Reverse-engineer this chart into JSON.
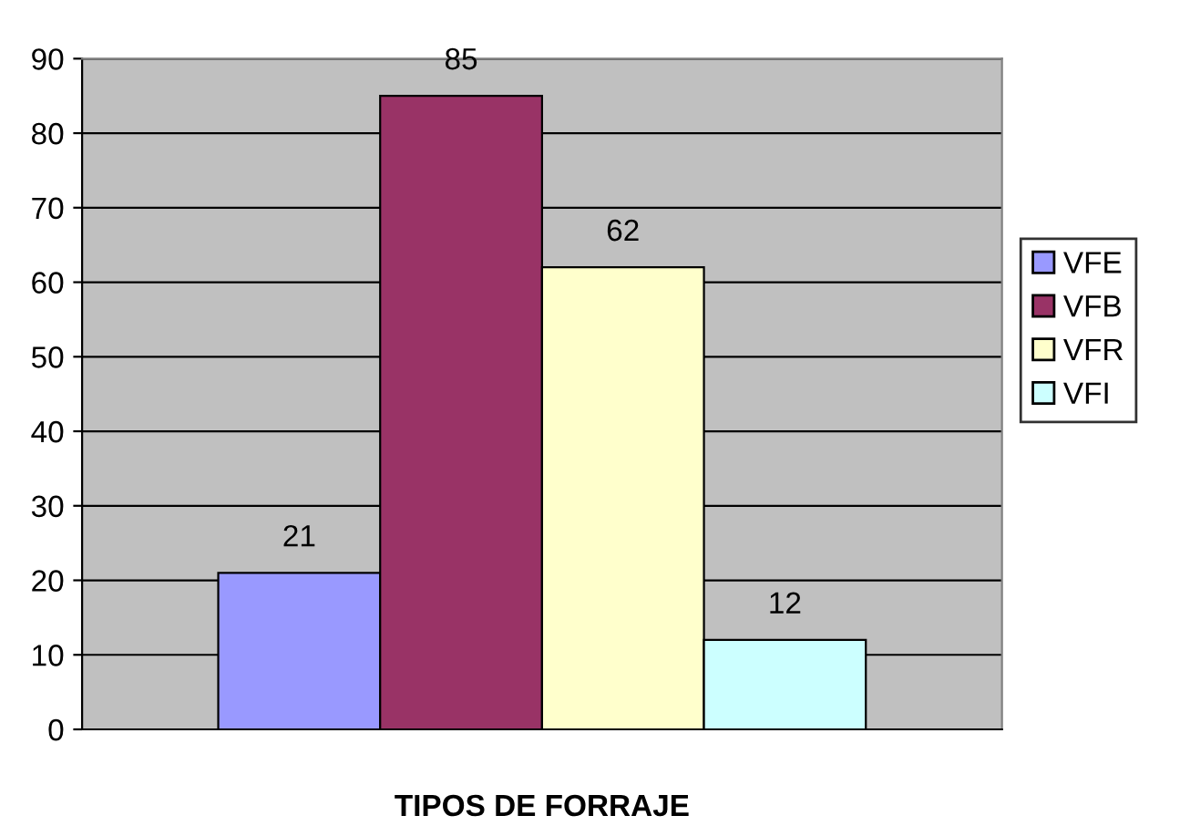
{
  "chart_data": {
    "type": "bar",
    "xlabel": "TIPOS DE FORRAJE",
    "categories": [
      null
    ],
    "series": [
      {
        "name": "VFE",
        "color": "#9999ff",
        "values": [
          21
        ]
      },
      {
        "name": "VFB",
        "color": "#993366",
        "values": [
          85
        ]
      },
      {
        "name": "VFR",
        "color": "#ffffcc",
        "values": [
          62
        ]
      },
      {
        "name": "VFI",
        "color": "#ccffff",
        "values": [
          12
        ]
      }
    ],
    "ylim": [
      0,
      90
    ],
    "yticks": [
      0,
      10,
      20,
      30,
      40,
      50,
      60,
      70,
      80,
      90
    ],
    "grid": "y",
    "legend": "right",
    "data_labels": true
  }
}
